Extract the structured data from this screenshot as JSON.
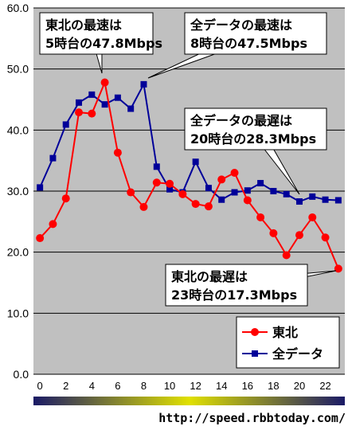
{
  "chart_data": {
    "type": "line",
    "x": [
      0,
      1,
      2,
      3,
      4,
      5,
      6,
      7,
      8,
      9,
      10,
      11,
      12,
      13,
      14,
      15,
      16,
      17,
      18,
      19,
      20,
      21,
      22,
      23
    ],
    "xticks": [
      "0",
      "2",
      "4",
      "6",
      "8",
      "10",
      "12",
      "14",
      "16",
      "18",
      "20",
      "22"
    ],
    "ylim": [
      0,
      60
    ],
    "yticks": [
      "0.0",
      "10.0",
      "20.0",
      "30.0",
      "40.0",
      "50.0",
      "60.0"
    ],
    "grid": true,
    "legend_position": "bottom-right",
    "series": [
      {
        "name": "東北",
        "color": "#ff0000",
        "marker": "circle",
        "values": [
          22.3,
          24.6,
          28.8,
          42.9,
          42.7,
          47.8,
          36.3,
          29.8,
          27.4,
          31.4,
          31.2,
          29.5,
          27.9,
          27.5,
          31.9,
          33.0,
          28.5,
          25.7,
          23.1,
          19.5,
          22.8,
          25.7,
          22.4,
          17.3
        ]
      },
      {
        "name": "全データ",
        "color": "#000099",
        "marker": "square",
        "values": [
          30.6,
          35.4,
          40.9,
          44.5,
          45.8,
          44.2,
          45.3,
          43.5,
          47.5,
          34.0,
          30.3,
          29.8,
          34.8,
          30.5,
          28.6,
          29.8,
          30.1,
          31.3,
          30.0,
          29.5,
          28.3,
          29.1,
          28.6,
          28.5
        ]
      }
    ],
    "annotations": [
      {
        "lines": [
          "東北の最速は",
          "5時台の47.8Mbps"
        ],
        "target": {
          "series": 0,
          "x": 5
        }
      },
      {
        "lines": [
          "全データの最速は",
          "8時台の47.5Mbps"
        ],
        "target": {
          "series": 1,
          "x": 8
        }
      },
      {
        "lines": [
          "全データの最遅は",
          "20時台の28.3Mbps"
        ],
        "target": {
          "series": 1,
          "x": 20
        }
      },
      {
        "lines": [
          "東北の最遅は",
          "23時台の17.3Mbps"
        ],
        "target": {
          "series": 0,
          "x": 23
        }
      }
    ],
    "time_bar_colors": [
      "#1a1a66",
      "#e0e000",
      "#1a1a66"
    ]
  },
  "source_text": "http://speed.rbbtoday.com/"
}
